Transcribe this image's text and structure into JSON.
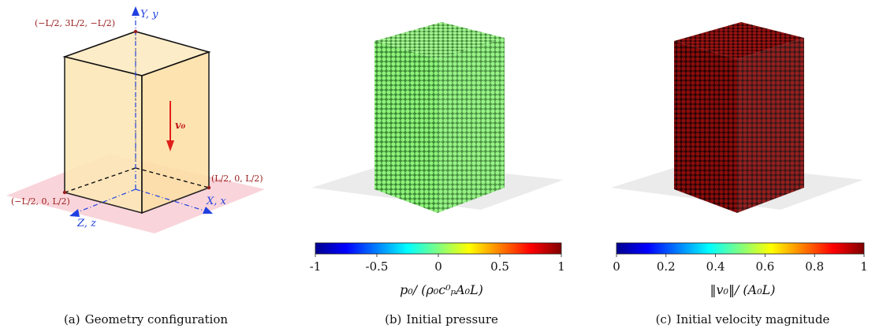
{
  "panel_a": {
    "caption_tag": "(a)",
    "caption": "Geometry configuration",
    "labels": {
      "corner_top": "(−L/2, 3L/2, −L/2)",
      "corner_right": "(L/2, 0, L/2)",
      "corner_left": "(−L/2, 0, L/2)",
      "axis_y": "Y, y",
      "axis_x": "X, x",
      "axis_z": "Z, z",
      "velocity": "v₀"
    },
    "colors": {
      "box_fill": "#fde9bf",
      "plane_fill": "#f7c7cf",
      "axis": "#1f3fe0",
      "arrow": "#e0201a",
      "corner_text": "#9b1b1b"
    }
  },
  "panel_b": {
    "caption_tag": "(b)",
    "caption": "Initial pressure",
    "colorbar_label": "p₀/ (ρ₀c⁰ₚA₀L)",
    "colorbar_ticks": [
      "-1",
      "-0.5",
      "0",
      "0.5",
      "1"
    ],
    "colorbar_range": [
      -1,
      1
    ],
    "particle_color": "#8ef27a",
    "colormap": "jet"
  },
  "panel_c": {
    "caption_tag": "(c)",
    "caption": "Initial velocity magnitude",
    "colorbar_label": "‖v₀‖/ (A₀L)",
    "colorbar_ticks": [
      "0",
      "0.2",
      "0.4",
      "0.6",
      "0.8",
      "1"
    ],
    "colorbar_range": [
      0,
      1
    ],
    "particle_color": "#8a0c0c",
    "colormap": "jet"
  }
}
